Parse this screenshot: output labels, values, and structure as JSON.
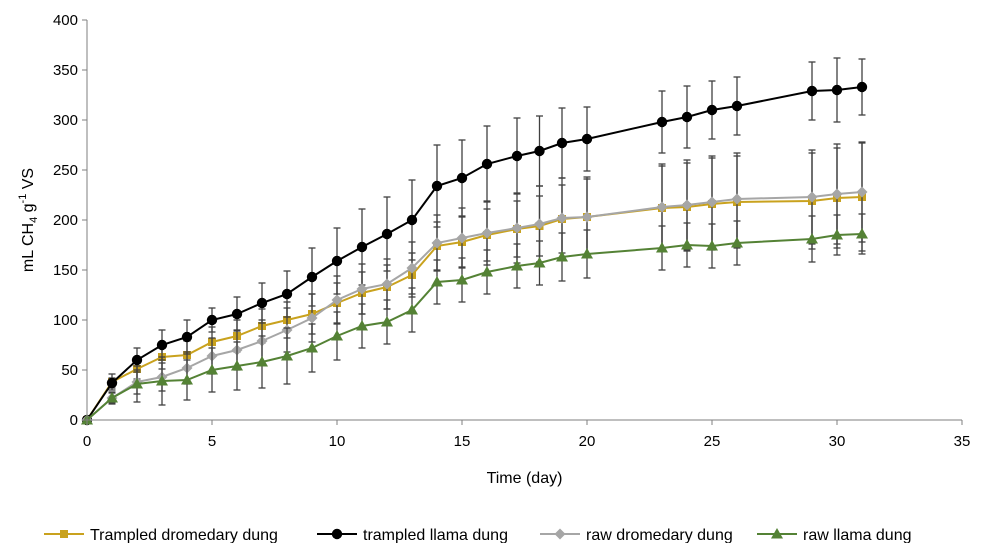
{
  "chart_data": {
    "type": "line",
    "title": "",
    "xlabel": "Time (day)",
    "ylabel": {
      "prefix": "mL CH",
      "sub": "4",
      "mid": " g",
      "sup": "-1",
      "suffix": " VS"
    },
    "xlim": [
      0,
      35
    ],
    "ylim": [
      0,
      400
    ],
    "xticks": [
      "0",
      "5",
      "10",
      "15",
      "20",
      "25",
      "30",
      "35"
    ],
    "yticks": [
      "0",
      "50",
      "100",
      "150",
      "200",
      "250",
      "300",
      "350",
      "400"
    ],
    "grid": false,
    "legend_position": "bottom",
    "x": [
      0,
      1,
      2,
      3,
      4,
      5,
      6,
      7,
      8,
      9,
      10,
      11,
      12,
      13,
      14,
      15,
      16,
      17.2,
      18.1,
      19,
      20,
      23,
      24,
      25,
      26,
      29,
      30,
      31
    ],
    "series": [
      {
        "name": "Trampled dromedary dung",
        "color": "#C9A21E",
        "marker": "square",
        "values": [
          0,
          38,
          51,
          63,
          65,
          78,
          84,
          94,
          100,
          106,
          117,
          127,
          133,
          145,
          174,
          178,
          185,
          191,
          194,
          201,
          203,
          212,
          213,
          216,
          218,
          219,
          222,
          223
        ],
        "errors": [
          0,
          8,
          10,
          12,
          14,
          15,
          16,
          17,
          18,
          20,
          20,
          21,
          22,
          22,
          24,
          25,
          26,
          28,
          30,
          34,
          38,
          42,
          44,
          46,
          46,
          48,
          50,
          54
        ]
      },
      {
        "name": "trampled llama dung",
        "color": "#000000",
        "marker": "circle",
        "values": [
          0,
          37,
          60,
          75,
          83,
          100,
          106,
          117,
          126,
          143,
          159,
          173,
          186,
          200,
          234,
          242,
          256,
          264,
          269,
          277,
          281,
          298,
          303,
          310,
          314,
          329,
          330,
          333
        ],
        "errors": [
          0,
          5,
          12,
          15,
          17,
          12,
          17,
          20,
          23,
          29,
          33,
          38,
          37,
          40,
          41,
          38,
          38,
          38,
          35,
          35,
          32,
          31,
          31,
          29,
          29,
          29,
          32,
          28
        ]
      },
      {
        "name": "raw dromedary dung",
        "color": "#A6A6A6",
        "marker": "diamond",
        "values": [
          0,
          22,
          38,
          43,
          52,
          64,
          70,
          79,
          90,
          102,
          120,
          131,
          136,
          152,
          177,
          182,
          187,
          192,
          196,
          202,
          203,
          213,
          215,
          218,
          221,
          223,
          226,
          228
        ],
        "errors": [
          0,
          6,
          12,
          14,
          16,
          18,
          20,
          21,
          22,
          24,
          24,
          25,
          25,
          26,
          28,
          30,
          32,
          35,
          38,
          40,
          40,
          43,
          45,
          46,
          46,
          47,
          50,
          50
        ]
      },
      {
        "name": "raw llama dung",
        "color": "#548235",
        "marker": "triangle",
        "values": [
          0,
          22,
          36,
          39,
          40,
          50,
          54,
          58,
          64,
          72,
          84,
          94,
          98,
          110,
          138,
          140,
          148,
          154,
          157,
          163,
          166,
          172,
          175,
          174,
          177,
          181,
          185,
          186
        ],
        "errors": [
          0,
          5,
          18,
          24,
          20,
          22,
          24,
          26,
          28,
          24,
          24,
          22,
          22,
          22,
          22,
          22,
          22,
          22,
          22,
          24,
          24,
          22,
          22,
          22,
          22,
          23,
          20,
          20
        ]
      }
    ]
  }
}
